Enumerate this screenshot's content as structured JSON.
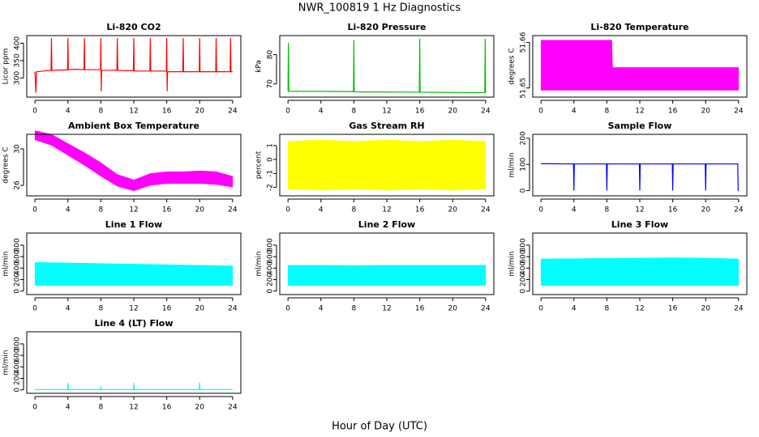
{
  "title": "NWR_100819  1 Hz Diagnostics",
  "xlabel": "Hour of Day (UTC)",
  "chart_data": [
    {
      "type": "line",
      "title": "Li-820 CO2",
      "ylabel": "Licor ppm",
      "color": "#ff0000",
      "xlim": [
        -1,
        25
      ],
      "xticks": [
        0,
        4,
        8,
        12,
        16,
        20,
        24
      ],
      "ylim": [
        245,
        422
      ],
      "yticks": [
        300,
        350,
        400
      ],
      "x": [
        0,
        0.1,
        0.2,
        1,
        1.95,
        2,
        2.05,
        3,
        3.95,
        4,
        4.05,
        5,
        5.95,
        6,
        6.05,
        7,
        7.95,
        8,
        8.05,
        8.1,
        9,
        9.95,
        10,
        10.05,
        11,
        11.95,
        12,
        12.05,
        13,
        13.95,
        14,
        14.05,
        15,
        15.95,
        16,
        16.05,
        16.1,
        17,
        17.95,
        18,
        18.05,
        19,
        19.95,
        20,
        20.05,
        21,
        21.95,
        22,
        22.05,
        23,
        23.7,
        23.75,
        23.8,
        24
      ],
      "values": [
        318,
        258,
        318,
        320,
        322,
        415,
        322,
        323,
        323,
        415,
        324,
        325,
        324,
        415,
        324,
        324,
        324,
        415,
        262,
        322,
        322,
        323,
        415,
        322,
        321,
        321,
        415,
        320,
        320,
        320,
        415,
        320,
        320,
        320,
        415,
        262,
        318,
        318,
        318,
        415,
        318,
        318,
        318,
        415,
        318,
        318,
        318,
        415,
        318,
        318,
        318,
        415,
        318,
        318
      ]
    },
    {
      "type": "line",
      "title": "Li-820 Pressure",
      "ylabel": "kPa",
      "color": "#00c000",
      "xlim": [
        -1,
        25
      ],
      "xticks": [
        0,
        4,
        8,
        12,
        16,
        20,
        24
      ],
      "ylim": [
        65.5,
        86.5
      ],
      "yticks": [
        70,
        80
      ],
      "x": [
        0,
        0.05,
        0.1,
        7.95,
        8,
        8.05,
        15.95,
        16,
        16.05,
        23.9,
        23.95,
        24
      ],
      "values": [
        67.5,
        84,
        67.5,
        67.4,
        85,
        67.3,
        67.2,
        85.5,
        67.2,
        67.0,
        85.5,
        67.0
      ]
    },
    {
      "type": "range",
      "title": "Li-820 Temperature",
      "ylabel": "degrees C",
      "color": "#ff00ff",
      "xlim": [
        -1,
        25
      ],
      "xticks": [
        0,
        4,
        8,
        12,
        16,
        20,
        24
      ],
      "ylim": [
        51.648,
        51.6615
      ],
      "yticks": [
        51.65,
        51.66
      ],
      "x": [
        0,
        8.6,
        8.7,
        24
      ],
      "low": [
        51.6495,
        51.6495,
        51.6495,
        51.6495
      ],
      "high": [
        51.6605,
        51.6605,
        51.6545,
        51.6545
      ]
    },
    {
      "type": "range",
      "title": "Ambient Box Temperature",
      "ylabel": "degrees C",
      "color": "#ff00ff",
      "xlim": [
        -1,
        25
      ],
      "xticks": [
        0,
        4,
        8,
        12,
        16,
        20,
        24
      ],
      "ylim": [
        24.85,
        31.6
      ],
      "yticks": [
        26,
        30
      ],
      "x": [
        0,
        2,
        4,
        6,
        8,
        10,
        12,
        14,
        16,
        18,
        20,
        22,
        24
      ],
      "low": [
        31.0,
        30.4,
        29.3,
        28.2,
        27.0,
        25.9,
        25.4,
        26.0,
        26.2,
        26.2,
        26.2,
        26.1,
        25.8
      ],
      "high": [
        32.0,
        31.6,
        30.6,
        29.6,
        28.5,
        27.2,
        26.6,
        27.3,
        27.5,
        27.5,
        27.6,
        27.5,
        27.0
      ]
    },
    {
      "type": "range",
      "title": "Gas Stream RH",
      "ylabel": "percent",
      "color": "#ffff00",
      "xlim": [
        -1,
        25
      ],
      "xticks": [
        0,
        4,
        8,
        12,
        16,
        20,
        24
      ],
      "ylim": [
        -2.6,
        1.8
      ],
      "yticks": [
        -2,
        -1,
        0,
        1
      ],
      "x": [
        0,
        4,
        8,
        12,
        16,
        20,
        24
      ],
      "low": [
        -2.1,
        -2.2,
        -2.1,
        -2.2,
        -2.1,
        -2.2,
        -2.1
      ],
      "high": [
        1.3,
        1.4,
        1.3,
        1.4,
        1.3,
        1.4,
        1.3
      ]
    },
    {
      "type": "line",
      "title": "Sample Flow",
      "ylabel": "ml/min",
      "color": "#0000ff",
      "xlim": [
        -1,
        25
      ],
      "xticks": [
        0,
        4,
        8,
        12,
        16,
        20,
        24
      ],
      "ylim": [
        -20,
        215
      ],
      "yticks": [
        0,
        100,
        200
      ],
      "x": [
        0,
        3.95,
        4,
        4.05,
        7.95,
        8,
        8.05,
        11.95,
        12,
        12.05,
        15.95,
        16,
        16.05,
        19.95,
        20,
        20.05,
        23.9,
        23.95,
        24
      ],
      "values": [
        103,
        102,
        0,
        102,
        102,
        0,
        102,
        102,
        0,
        102,
        102,
        0,
        102,
        102,
        0,
        102,
        102,
        0,
        0
      ]
    },
    {
      "type": "range",
      "title": "Line 1 Flow",
      "ylabel": "ml/min",
      "color": "#00ffff",
      "xlim": [
        -1,
        25
      ],
      "xticks": [
        0,
        4,
        8,
        12,
        16,
        20,
        24
      ],
      "ylim": [
        -60,
        1010
      ],
      "yticks": [
        0,
        200,
        400,
        600,
        800
      ],
      "x": [
        0,
        4,
        8,
        12,
        16,
        20,
        24
      ],
      "low": [
        100,
        100,
        100,
        100,
        100,
        100,
        100
      ],
      "high": [
        500,
        490,
        480,
        470,
        460,
        450,
        440
      ]
    },
    {
      "type": "range",
      "title": "Line 2 Flow",
      "ylabel": "ml/min",
      "color": "#00ffff",
      "xlim": [
        -1,
        25
      ],
      "xticks": [
        0,
        4,
        8,
        12,
        16,
        20,
        24
      ],
      "ylim": [
        -60,
        1010
      ],
      "yticks": [
        0,
        200,
        400,
        600,
        800
      ],
      "x": [
        0,
        4,
        8,
        12,
        16,
        20,
        24
      ],
      "low": [
        100,
        100,
        100,
        100,
        100,
        100,
        100
      ],
      "high": [
        450,
        450,
        445,
        450,
        450,
        450,
        450
      ]
    },
    {
      "type": "range",
      "title": "Line 3 Flow",
      "ylabel": "ml/min",
      "color": "#00ffff",
      "xlim": [
        -1,
        25
      ],
      "xticks": [
        0,
        4,
        8,
        12,
        16,
        20,
        24
      ],
      "ylim": [
        -60,
        1010
      ],
      "yticks": [
        0,
        200,
        400,
        600,
        800
      ],
      "x": [
        0,
        4,
        8,
        12,
        16,
        20,
        24
      ],
      "low": [
        100,
        100,
        100,
        100,
        100,
        100,
        100
      ],
      "high": [
        560,
        565,
        570,
        575,
        580,
        575,
        560
      ]
    },
    {
      "type": "line",
      "title": "Line 4 (LT) Flow",
      "ylabel": "ml/min",
      "color": "#00ffff",
      "xlim": [
        -1,
        25
      ],
      "xticks": [
        0,
        4,
        8,
        12,
        16,
        20,
        24
      ],
      "ylim": [
        -60,
        1010
      ],
      "yticks": [
        0,
        200,
        400,
        600,
        800
      ],
      "x": [
        0,
        3.95,
        4,
        4.05,
        7.95,
        8,
        8.05,
        11.95,
        12,
        12.05,
        19.95,
        20,
        20.05,
        24
      ],
      "values": [
        5,
        5,
        120,
        5,
        5,
        60,
        5,
        5,
        120,
        5,
        5,
        130,
        5,
        5
      ]
    }
  ]
}
